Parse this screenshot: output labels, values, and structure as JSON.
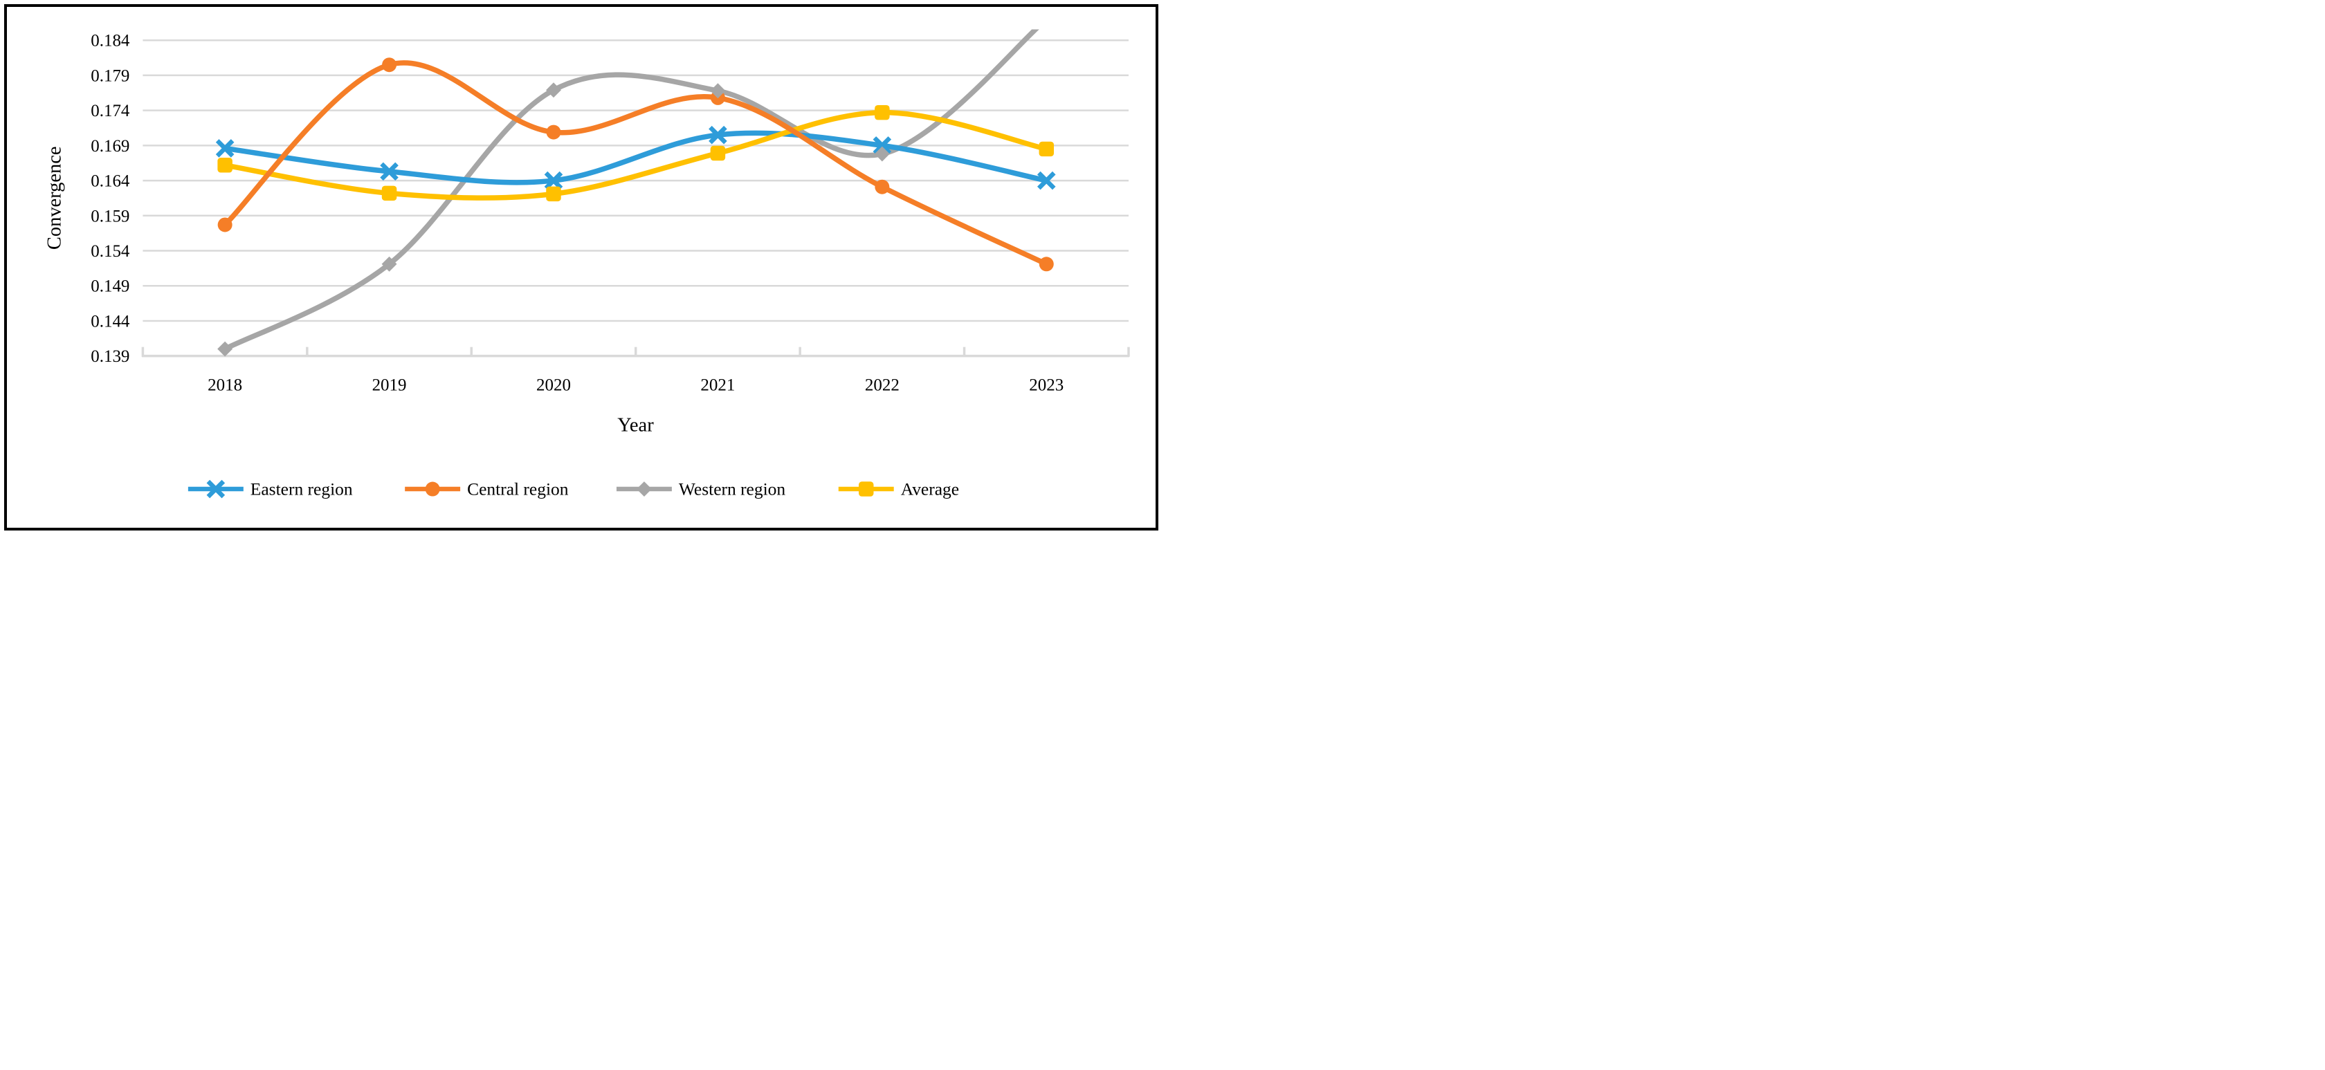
{
  "chart_data": {
    "type": "line",
    "title": "",
    "xlabel": "Year",
    "ylabel": "Convergence",
    "categories": [
      "2018",
      "2019",
      "2020",
      "2021",
      "2022",
      "2023"
    ],
    "series": [
      {
        "name": "Eastern region",
        "color": "#2E9CD9",
        "marker": "x",
        "values": [
          0.1686,
          0.1653,
          0.164,
          0.1705,
          0.169,
          0.164
        ]
      },
      {
        "name": "Central region",
        "color": "#F57E27",
        "marker": "circle",
        "values": [
          0.1577,
          0.1805,
          0.1709,
          0.1758,
          0.1631,
          0.1521
        ]
      },
      {
        "name": "Western region",
        "color": "#A6A6A6",
        "marker": "diamond",
        "values": [
          0.14,
          0.1521,
          0.1769,
          0.1768,
          0.1678,
          0.187
        ],
        "note": "2023 value estimated; line exceeds the axis maximum and is clipped at the top of the plot area"
      },
      {
        "name": "Average",
        "color": "#FFC000",
        "marker": "square",
        "values": [
          0.1662,
          0.1622,
          0.1621,
          0.1679,
          0.1737,
          0.1685
        ]
      }
    ],
    "y_axis": {
      "min": 0.139,
      "max": 0.184,
      "step": 0.005,
      "tick_labels": [
        "0.184",
        "0.179",
        "0.174",
        "0.169",
        "0.164",
        "0.159",
        "0.154",
        "0.149",
        "0.144",
        "0.139"
      ]
    },
    "x_axis": {
      "tick_labels": [
        "2018",
        "2019",
        "2020",
        "2021",
        "2022",
        "2023"
      ]
    },
    "grid": true,
    "smooth_lines": true,
    "legend_position": "bottom",
    "axis_color": "#D9D9D9",
    "text_color": "#000000",
    "frame_color": "#000000"
  }
}
